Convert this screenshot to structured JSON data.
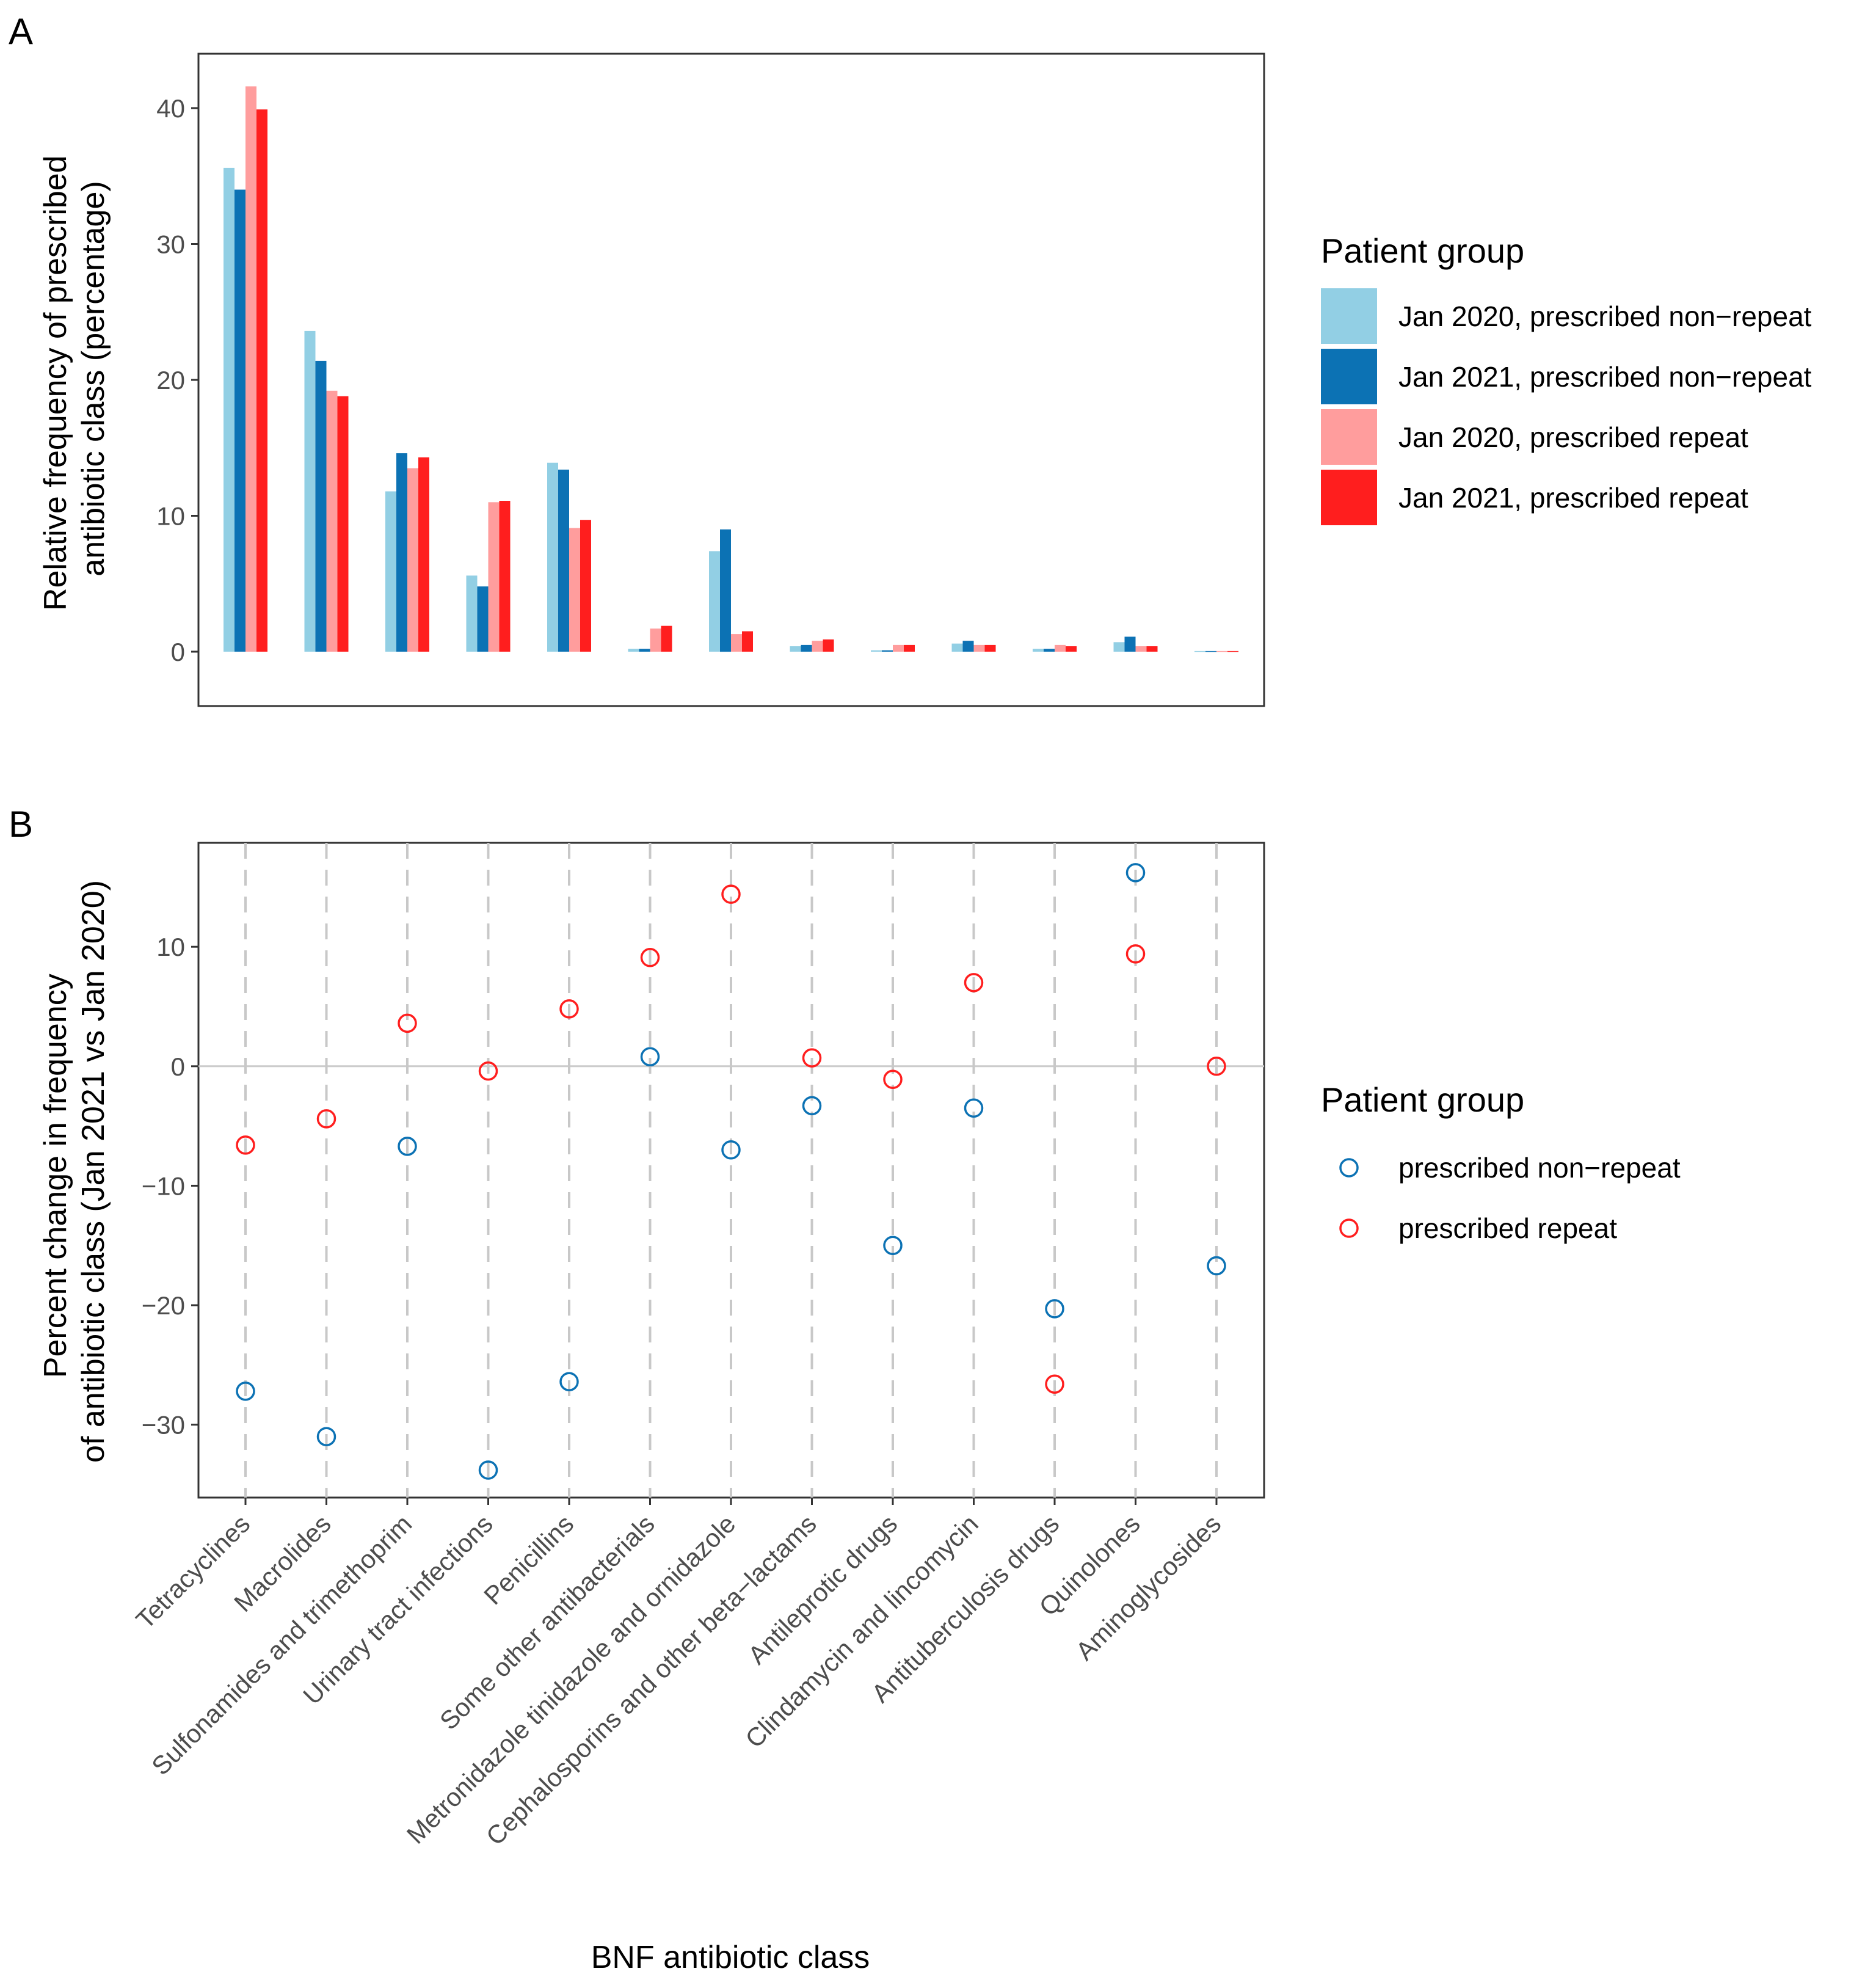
{
  "figure": {
    "panels": [
      "A",
      "B"
    ]
  },
  "chart_data": [
    {
      "panel": "A",
      "type": "bar",
      "ylabel": "Relative frequency of prescribed antibiotic class (percentage)",
      "ylabel_lines": [
        "Relative frequency of prescribed",
        "antibiotic class (percentage)"
      ],
      "xlabel": "",
      "ylim": [
        -4,
        44
      ],
      "yticks": [
        0,
        10,
        20,
        30,
        40
      ],
      "grid": false,
      "legend_title": "Patient group",
      "categories": [
        "Tetracyclines",
        "Macrolides",
        "Sulfonamides and trimethoprim",
        "Urinary tract infections",
        "Penicillins",
        "Some other antibacterials",
        "Metronidazole tinidazole and ornidazole",
        "Cephalosporins and other beta−lactams",
        "Antileprotic drugs",
        "Clindamycin and lincomycin",
        "Antituberculosis drugs",
        "Quinolones",
        "Aminoglycosides"
      ],
      "series": [
        {
          "name": "Jan 2020, prescribed non−repeat",
          "color": "#92cfe4",
          "values": [
            35.6,
            23.6,
            11.8,
            5.6,
            13.9,
            0.2,
            7.4,
            0.4,
            0.1,
            0.6,
            0.2,
            0.7,
            0.05
          ]
        },
        {
          "name": "Jan 2021, prescribed non−repeat",
          "color": "#0c72b4",
          "values": [
            34.0,
            21.4,
            14.6,
            4.8,
            13.4,
            0.2,
            9.0,
            0.5,
            0.1,
            0.8,
            0.2,
            1.1,
            0.05
          ]
        },
        {
          "name": "Jan 2020, prescribed repeat",
          "color": "#ff9d9d",
          "values": [
            41.6,
            19.2,
            13.5,
            11.0,
            9.1,
            1.7,
            1.3,
            0.8,
            0.5,
            0.5,
            0.5,
            0.4,
            0.05
          ]
        },
        {
          "name": "Jan 2021, prescribed repeat",
          "color": "#ff1e1e",
          "values": [
            39.9,
            18.8,
            14.3,
            11.1,
            9.7,
            1.9,
            1.5,
            0.9,
            0.5,
            0.5,
            0.4,
            0.4,
            0.05
          ]
        }
      ]
    },
    {
      "panel": "B",
      "type": "scatter",
      "ylabel": "Percent change in frequency of antibiotic class (Jan 2021 vs Jan 2020)",
      "ylabel_lines": [
        "Percent change in frequency",
        "of antibiotic class (Jan 2021 vs Jan 2020)"
      ],
      "xlabel": "BNF antibiotic class",
      "ylim": [
        -36.1,
        18.7
      ],
      "yticks": [
        -30,
        -20,
        -10,
        0,
        10
      ],
      "grid": false,
      "legend_title": "Patient group",
      "categories": [
        "Tetracyclines",
        "Macrolides",
        "Sulfonamides and trimethoprim",
        "Urinary tract infections",
        "Penicillins",
        "Some other antibacterials",
        "Metronidazole tinidazole and ornidazole",
        "Cephalosporins and other beta−lactams",
        "Antileprotic drugs",
        "Clindamycin and lincomycin",
        "Antituberculosis drugs",
        "Quinolones",
        "Aminoglycosides"
      ],
      "series": [
        {
          "name": "prescribed non−repeat",
          "color": "#0c72b4",
          "values": [
            -27.2,
            -31.0,
            -6.7,
            -33.8,
            -26.4,
            0.8,
            -7.0,
            -3.3,
            -15.0,
            -3.5,
            -20.3,
            16.2,
            -16.7
          ]
        },
        {
          "name": "prescribed repeat",
          "color": "#ff1e1e",
          "values": [
            -6.6,
            -4.4,
            3.6,
            -0.4,
            4.8,
            9.1,
            14.4,
            0.7,
            -1.1,
            7.0,
            -26.6,
            9.4,
            0.0
          ]
        }
      ]
    }
  ]
}
